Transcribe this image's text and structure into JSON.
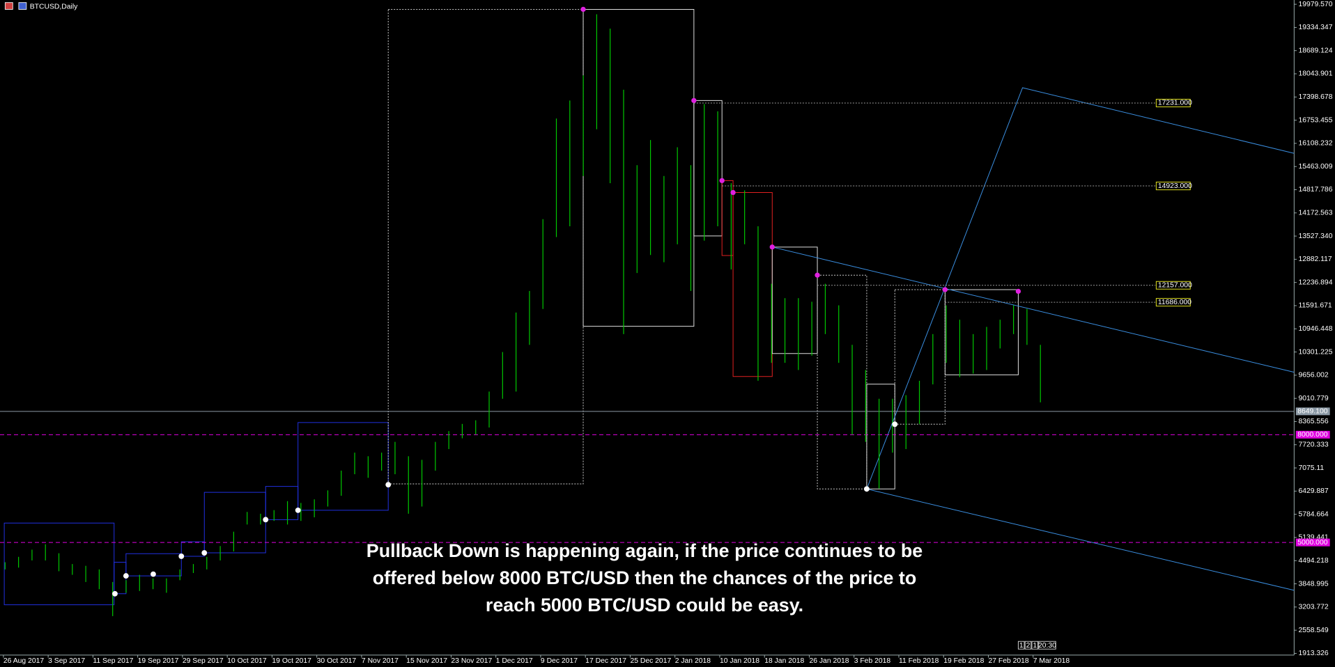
{
  "chart_data": {
    "type": "ohlc",
    "title": "BTCUSD,Daily",
    "ylim": [
      1859,
      20098
    ],
    "yticks": [
      {
        "value": 19979.57,
        "label": "19979.570"
      },
      19334.347,
      18689.124,
      18043.901,
      17398.678,
      16753.455,
      16108.232,
      15463.009,
      14817.786,
      14172.563,
      {
        "value": 13527.34,
        "label": "13527.340"
      },
      12882.117,
      12236.894,
      11591.671,
      10946.448,
      10301.225,
      9656.002,
      9010.779,
      8365.556,
      7720.333,
      7075.11,
      6429.887,
      5784.664,
      5139.441,
      4494.218,
      3848.995,
      3203.772,
      2558.549,
      1913.326
    ],
    "x_labels": [
      "26 Aug 2017",
      "3 Sep 2017",
      "11 Sep 2017",
      "19 Sep 2017",
      "29 Sep 2017",
      "10 Oct 2017",
      "19 Oct 2017",
      "30 Oct 2017",
      "7 Nov 2017",
      "15 Nov 2017",
      "23 Nov 2017",
      "1 Dec 2017",
      "9 Dec 2017",
      "17 Dec 2017",
      "25 Dec 2017",
      "2 Jan 2018",
      "10 Jan 2018",
      "18 Jan 2018",
      "26 Jan 2018",
      "3 Feb 2018",
      "11 Feb 2018",
      "19 Feb 2018",
      "27 Feb 2018",
      "7 Mar 2018"
    ],
    "color": "#00c800",
    "bars": [
      [
        4250,
        4450
      ],
      [
        4300,
        4600
      ],
      [
        4500,
        4800
      ],
      [
        4500,
        4950
      ],
      [
        4200,
        4700
      ],
      [
        4100,
        4400
      ],
      [
        3900,
        4350
      ],
      [
        3700,
        4250
      ],
      [
        2950,
        3900
      ],
      [
        3600,
        3950
      ],
      [
        3650,
        4100
      ],
      [
        3700,
        4000
      ],
      [
        3600,
        4000
      ],
      [
        3950,
        4250
      ],
      [
        4150,
        4400
      ],
      [
        4250,
        4600
      ],
      [
        4500,
        4900
      ],
      [
        4750,
        5300
      ],
      [
        5500,
        5850
      ],
      [
        5500,
        5800
      ],
      [
        5600,
        5900
      ],
      [
        5500,
        6150
      ],
      [
        5600,
        6100
      ],
      [
        5700,
        6200
      ],
      [
        6000,
        6450
      ],
      [
        6300,
        7000
      ],
      [
        6900,
        7500
      ],
      [
        6800,
        7400
      ],
      [
        7000,
        7500
      ],
      [
        6900,
        7800
      ],
      [
        5800,
        7400
      ],
      [
        6000,
        7300
      ],
      [
        7000,
        7800
      ],
      [
        7600,
        8100
      ],
      [
        7900,
        8300
      ],
      [
        8000,
        8400
      ],
      [
        8200,
        9200
      ],
      [
        9000,
        10300
      ],
      [
        9200,
        11400
      ],
      [
        10500,
        12000
      ],
      [
        11500,
        14000
      ],
      [
        13500,
        16800
      ],
      [
        13800,
        17300
      ],
      [
        15200,
        18000
      ],
      [
        16500,
        19700
      ],
      [
        15000,
        19300
      ],
      [
        10800,
        17600
      ],
      [
        12500,
        15500
      ],
      [
        13000,
        16200
      ],
      [
        12800,
        15200
      ],
      [
        13300,
        16000
      ],
      [
        12000,
        15500
      ],
      [
        13400,
        17200
      ],
      [
        13800,
        17000
      ],
      [
        12600,
        15000
      ],
      [
        13300,
        14800
      ],
      [
        9500,
        13800
      ],
      [
        10000,
        12200
      ],
      [
        10000,
        11800
      ],
      [
        9800,
        11800
      ],
      [
        10200,
        11700
      ],
      [
        10800,
        12200
      ],
      [
        10000,
        11600
      ],
      [
        8000,
        10500
      ],
      [
        7800,
        9800
      ],
      [
        6500,
        9000
      ],
      [
        7500,
        9000
      ],
      [
        7600,
        9100
      ],
      [
        8300,
        9500
      ],
      [
        9400,
        10800
      ],
      [
        10000,
        11600
      ],
      [
        9600,
        11200
      ],
      [
        9700,
        10800
      ],
      [
        9800,
        11000
      ],
      [
        10400,
        11200
      ],
      [
        10800,
        11600
      ],
      [
        10500,
        11500
      ],
      [
        8900,
        10500
      ]
    ],
    "levels": [
      {
        "value": 17231,
        "label": "17231.000"
      },
      {
        "value": 14923,
        "label": "14923.000"
      },
      {
        "value": 12157,
        "label": "12157.000"
      },
      {
        "value": 11686,
        "label": "11686.000"
      }
    ],
    "markers": [
      {
        "value": 8649.1,
        "label": "8649.100",
        "color": "#8c9aa6"
      },
      {
        "value": 8000,
        "label": "8000.000",
        "color": "#e000e0"
      },
      {
        "value": 5000,
        "label": "5000.000",
        "color": "#e000e0"
      }
    ],
    "annotation": [
      "Pullback Down is happening again, if the price continues to be",
      "offered below 8000 BTC/USD then the chances of the price to",
      "reach 5000 BTC/USD could be easy."
    ],
    "period_buttons": [
      "1",
      "2",
      "1",
      "20:30"
    ]
  }
}
